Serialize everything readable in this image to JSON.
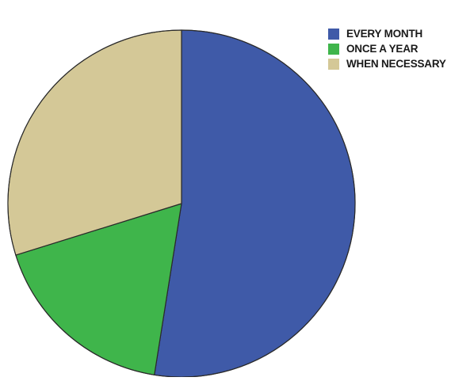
{
  "chart_data": {
    "type": "pie",
    "start_angle_deg": 0,
    "direction": "clockwise",
    "legend_position": "top-right",
    "slices": [
      {
        "label": "EVERY MONTH",
        "value": 52.5,
        "color": "#3f5aa8"
      },
      {
        "label": "ONCE A YEAR",
        "value": 17.7,
        "color": "#3fb54b"
      },
      {
        "label": "WHEN NECESSARY",
        "value": 29.8,
        "color": "#d4c897"
      }
    ],
    "legend": [
      {
        "label": "EVERY MONTH",
        "color": "#3f5aa8"
      },
      {
        "label": "ONCE A YEAR",
        "color": "#3fb54b"
      },
      {
        "label": "WHEN NECESSARY",
        "color": "#d4c897"
      }
    ]
  }
}
